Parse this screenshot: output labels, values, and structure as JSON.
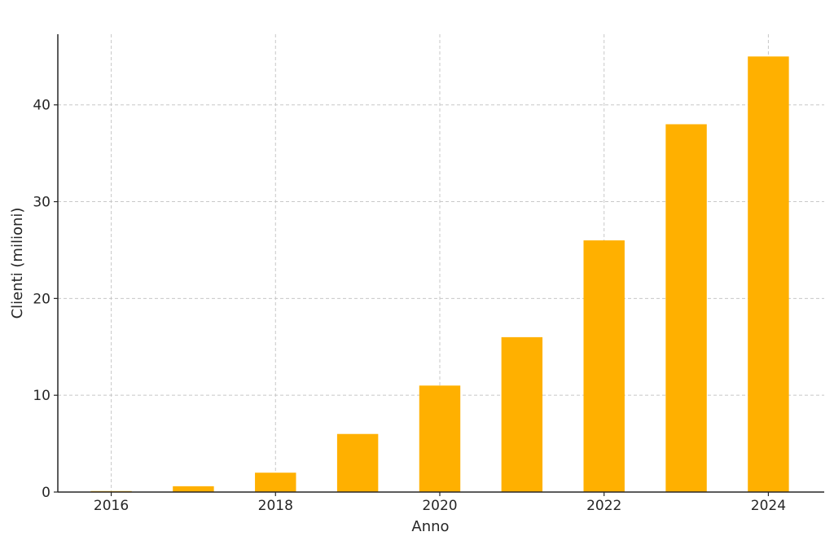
{
  "chart_data": {
    "type": "bar",
    "title": "",
    "xlabel": "Anno",
    "ylabel": "Clienti (milioni)",
    "categories": [
      2016,
      2017,
      2018,
      2019,
      2020,
      2021,
      2022,
      2023,
      2024
    ],
    "values": [
      0.1,
      0.6,
      2,
      6,
      11,
      16,
      26,
      38,
      45
    ],
    "x_ticks": [
      2016,
      2018,
      2020,
      2022,
      2024
    ],
    "y_ticks": [
      0,
      10,
      20,
      30,
      40
    ],
    "ylim": [
      0,
      47.3
    ],
    "xlim": [
      2015.35,
      2024.68
    ],
    "grid": true,
    "colors": {
      "bar": "#FFB000"
    }
  }
}
